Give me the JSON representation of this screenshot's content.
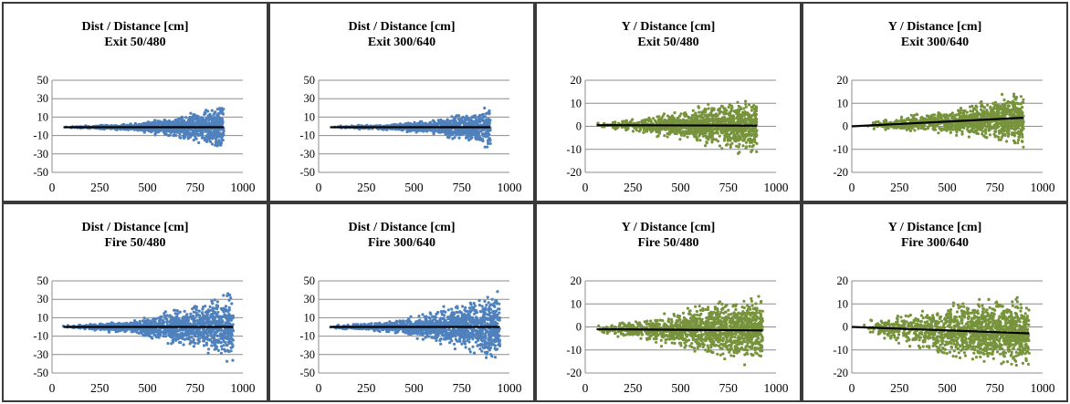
{
  "chart_data": [
    {
      "type": "scatter",
      "title": "Dist / Distance [cm]",
      "subtitle": "Exit 50/480",
      "xlim": [
        0,
        1000
      ],
      "ylim": [
        -50,
        50
      ],
      "xticks": [
        0,
        250,
        500,
        750,
        1000
      ],
      "yticks": [
        50,
        30,
        10,
        -10,
        -30,
        -50
      ],
      "marker_color": "#4f81bd",
      "x_range": [
        55,
        900
      ],
      "spread": [
        [
          0,
          1
        ],
        [
          400,
          4
        ],
        [
          600,
          12
        ],
        [
          800,
          22
        ],
        [
          900,
          34
        ]
      ],
      "trend": [
        [
          60,
          -1
        ],
        [
          900,
          -1
        ]
      ],
      "n_points": 1100
    },
    {
      "type": "scatter",
      "title": "Dist / Distance [cm]",
      "subtitle": "Exit 300/640",
      "xlim": [
        0,
        1000
      ],
      "ylim": [
        -50,
        50
      ],
      "xticks": [
        0,
        250,
        500,
        750,
        1000
      ],
      "yticks": [
        50,
        30,
        10,
        -10,
        -30,
        -50
      ],
      "marker_color": "#4f81bd",
      "x_range": [
        60,
        900
      ],
      "spread": [
        [
          0,
          1
        ],
        [
          400,
          4
        ],
        [
          600,
          10
        ],
        [
          800,
          18
        ],
        [
          900,
          30
        ]
      ],
      "trend": [
        [
          60,
          -1
        ],
        [
          900,
          -1
        ]
      ],
      "n_points": 1000
    },
    {
      "type": "scatter",
      "title": "Y / Distance [cm]",
      "subtitle": "Exit 50/480",
      "xlim": [
        0,
        1000
      ],
      "ylim": [
        -20,
        20
      ],
      "xticks": [
        0,
        250,
        500,
        750,
        1000
      ],
      "yticks": [
        20,
        10,
        0,
        -10,
        -20
      ],
      "marker_color": "#77933c",
      "x_range": [
        55,
        900
      ],
      "spread": [
        [
          0,
          1
        ],
        [
          300,
          4
        ],
        [
          600,
          9
        ],
        [
          800,
          13
        ],
        [
          900,
          14
        ]
      ],
      "trend": [
        [
          60,
          0.5
        ],
        [
          900,
          0.3
        ]
      ],
      "n_points": 1200
    },
    {
      "type": "scatter",
      "title": "Y / Distance [cm]",
      "subtitle": "Exit 300/640",
      "xlim": [
        0,
        1000
      ],
      "ylim": [
        -20,
        20
      ],
      "xticks": [
        0,
        250,
        500,
        750,
        1000
      ],
      "yticks": [
        20,
        10,
        0,
        -10,
        -20
      ],
      "marker_color": "#77933c",
      "x_range": [
        60,
        900
      ],
      "spread": [
        [
          0,
          1
        ],
        [
          300,
          4
        ],
        [
          600,
          8
        ],
        [
          800,
          12
        ],
        [
          900,
          14
        ]
      ],
      "trend": [
        [
          0,
          0
        ],
        [
          900,
          3.7
        ]
      ],
      "n_points": 1100
    },
    {
      "type": "scatter",
      "title": "Dist / Distance [cm]",
      "subtitle": "Fire 50/480",
      "xlim": [
        0,
        1000
      ],
      "ylim": [
        -50,
        50
      ],
      "xticks": [
        0,
        250,
        500,
        750,
        1000
      ],
      "yticks": [
        50,
        30,
        10,
        -10,
        -30,
        -50
      ],
      "marker_color": "#4f81bd",
      "x_range": [
        55,
        950
      ],
      "spread": [
        [
          0,
          1
        ],
        [
          400,
          8
        ],
        [
          600,
          20
        ],
        [
          800,
          32
        ],
        [
          950,
          44
        ]
      ],
      "trend": [
        [
          60,
          0
        ],
        [
          950,
          0
        ]
      ],
      "n_points": 1300
    },
    {
      "type": "scatter",
      "title": "Dist / Distance [cm]",
      "subtitle": "Fire 300/640",
      "xlim": [
        0,
        1000
      ],
      "ylim": [
        -50,
        50
      ],
      "xticks": [
        0,
        250,
        500,
        750,
        1000
      ],
      "yticks": [
        50,
        30,
        10,
        -10,
        -30,
        -50
      ],
      "marker_color": "#4f81bd",
      "x_range": [
        55,
        950
      ],
      "spread": [
        [
          0,
          1
        ],
        [
          400,
          8
        ],
        [
          600,
          20
        ],
        [
          800,
          34
        ],
        [
          950,
          46
        ]
      ],
      "trend": [
        [
          60,
          0
        ],
        [
          950,
          0
        ]
      ],
      "n_points": 1300
    },
    {
      "type": "scatter",
      "title": "Y / Distance [cm]",
      "subtitle": "Fire 50/480",
      "xlim": [
        0,
        1000
      ],
      "ylim": [
        -20,
        20
      ],
      "xticks": [
        0,
        250,
        500,
        750,
        1000
      ],
      "yticks": [
        20,
        10,
        0,
        -10,
        -20
      ],
      "marker_color": "#77933c",
      "x_range": [
        55,
        930
      ],
      "spread": [
        [
          0,
          2
        ],
        [
          300,
          6
        ],
        [
          600,
          13
        ],
        [
          800,
          16
        ],
        [
          930,
          17
        ]
      ],
      "trend": [
        [
          60,
          -1
        ],
        [
          930,
          -1.5
        ]
      ],
      "n_points": 1400
    },
    {
      "type": "scatter",
      "title": "Y / Distance [cm]",
      "subtitle": "Fire 300/640",
      "xlim": [
        0,
        1000
      ],
      "ylim": [
        -20,
        20
      ],
      "xticks": [
        0,
        250,
        500,
        750,
        1000
      ],
      "yticks": [
        20,
        10,
        0,
        -10,
        -20
      ],
      "marker_color": "#77933c",
      "x_range": [
        55,
        930
      ],
      "spread": [
        [
          0,
          2
        ],
        [
          300,
          8
        ],
        [
          600,
          16
        ],
        [
          800,
          18
        ],
        [
          930,
          18
        ]
      ],
      "trend": [
        [
          0,
          0
        ],
        [
          930,
          -2.8
        ]
      ],
      "n_points": 1400
    }
  ]
}
